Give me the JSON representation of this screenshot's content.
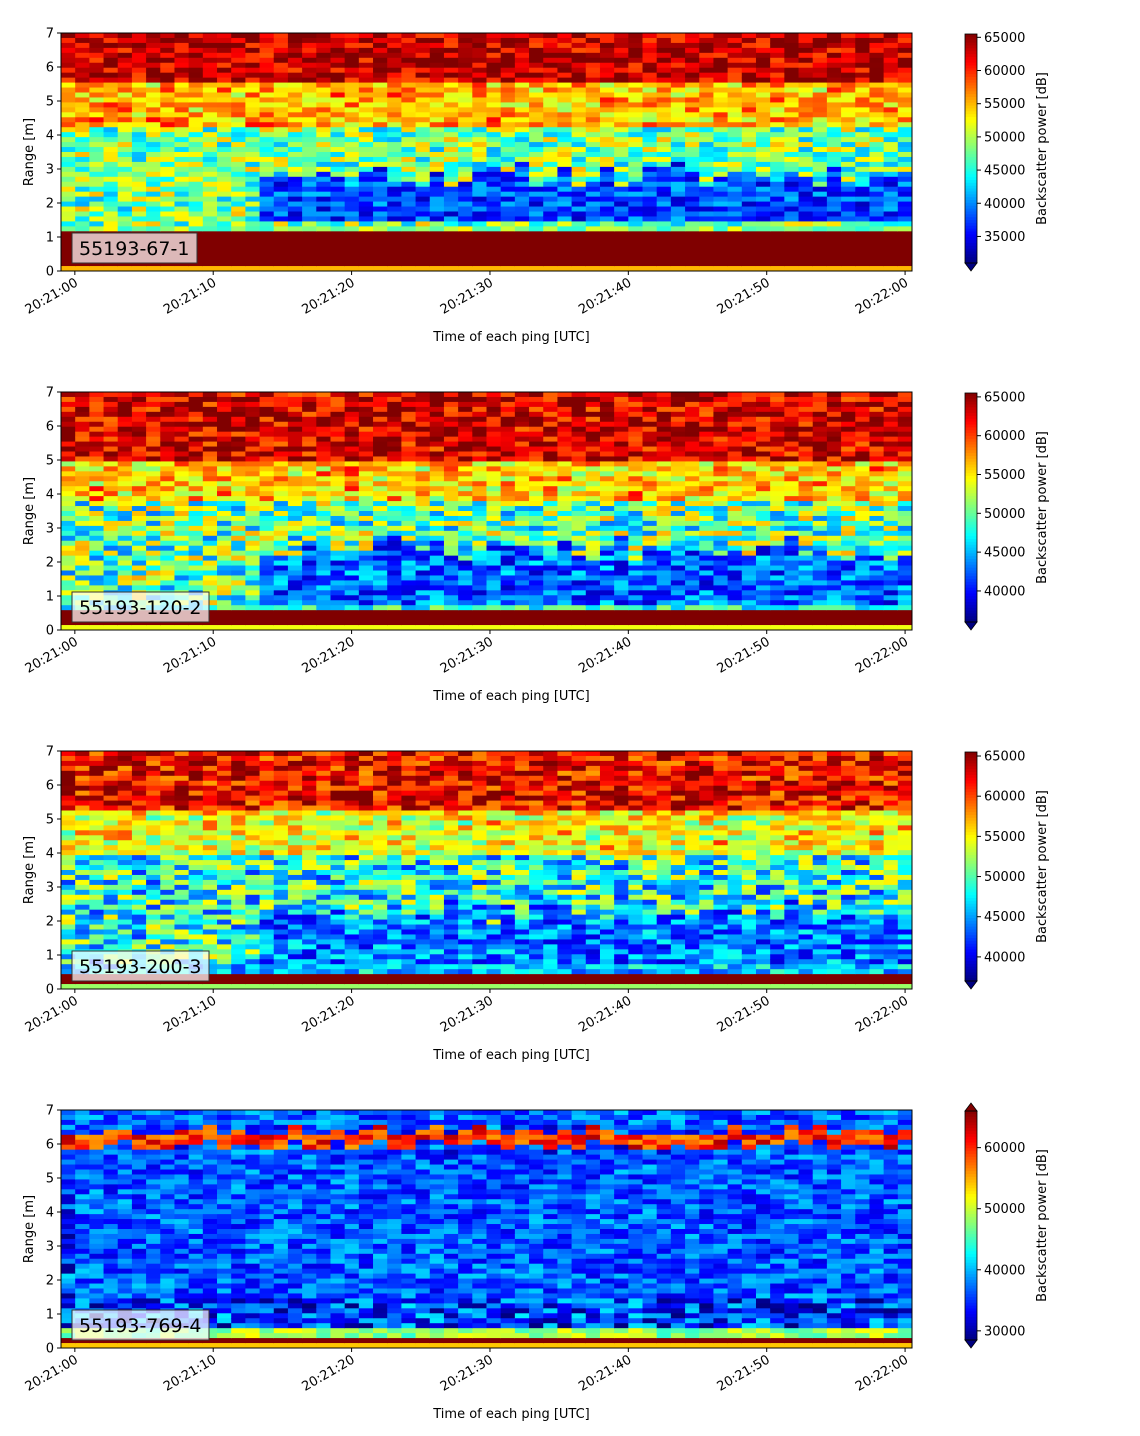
{
  "chart_data": [
    {
      "type": "heatmap",
      "label": "55193-67-1",
      "xlabel": "Time of each ping [UTC]",
      "ylabel": "Range [m]",
      "ylim": [
        0,
        7
      ],
      "yticks": [
        0,
        1,
        2,
        3,
        4,
        5,
        6,
        7
      ],
      "xticks": [
        "20:21:00",
        "20:21:10",
        "20:21:20",
        "20:21:30",
        "20:21:40",
        "20:21:50",
        "20:22:00"
      ],
      "xlim_seconds": [
        -1,
        60.5
      ],
      "colorbar": {
        "label": "Backscatter power [dB]",
        "min": 31000,
        "max": 65500,
        "ticks": [
          35000,
          40000,
          45000,
          50000,
          55000,
          60000,
          65000
        ],
        "extend": "min"
      },
      "profile": {
        "seed": 11,
        "base": 48000,
        "bottom_band": [
          0.2,
          1.1
        ],
        "bottom_value": 66000,
        "edge_value": 45000,
        "dark_layer": [
          1.5,
          2.8
        ],
        "dark_value": 33000,
        "dark_start": 13,
        "top_value": 62000,
        "top_from": 5.5
      }
    },
    {
      "type": "heatmap",
      "label": "55193-120-2",
      "xlabel": "Time of each ping [UTC]",
      "ylabel": "Range [m]",
      "ylim": [
        0,
        7
      ],
      "yticks": [
        0,
        1,
        2,
        3,
        4,
        5,
        6,
        7
      ],
      "xticks": [
        "20:21:00",
        "20:21:10",
        "20:21:20",
        "20:21:30",
        "20:21:40",
        "20:21:50",
        "20:22:00"
      ],
      "xlim_seconds": [
        -1,
        60.5
      ],
      "colorbar": {
        "label": "Backscatter power [dB]",
        "min": 36000,
        "max": 65500,
        "ticks": [
          40000,
          45000,
          50000,
          55000,
          60000,
          65000
        ],
        "extend": "min"
      },
      "profile": {
        "seed": 23,
        "base": 50000,
        "bottom_band": [
          0.1,
          0.55
        ],
        "bottom_value": 66000,
        "edge_value": 44000,
        "dark_layer": [
          0.8,
          2.4
        ],
        "dark_value": 38000,
        "dark_start": 13,
        "top_value": 62000,
        "top_from": 5.0
      }
    },
    {
      "type": "heatmap",
      "label": "55193-200-3",
      "xlabel": "Time of each ping [UTC]",
      "ylabel": "Range [m]",
      "ylim": [
        0,
        7
      ],
      "yticks": [
        0,
        1,
        2,
        3,
        4,
        5,
        6,
        7
      ],
      "xticks": [
        "20:21:00",
        "20:21:10",
        "20:21:20",
        "20:21:30",
        "20:21:40",
        "20:21:50",
        "20:22:00"
      ],
      "xlim_seconds": [
        -1,
        60.5
      ],
      "colorbar": {
        "label": "Backscatter power [dB]",
        "min": 37000,
        "max": 65500,
        "ticks": [
          40000,
          45000,
          50000,
          55000,
          60000,
          65000
        ],
        "extend": "min"
      },
      "profile": {
        "seed": 37,
        "base": 48500,
        "bottom_band": [
          0.1,
          0.45
        ],
        "bottom_value": 66000,
        "edge_value": 42000,
        "dark_layer": [
          0.7,
          2.3
        ],
        "dark_value": 39500,
        "dark_start": 13,
        "top_value": 61000,
        "top_from": 5.2
      }
    },
    {
      "type": "heatmap",
      "label": "55193-769-4",
      "xlabel": "Time of each ping [UTC]",
      "ylabel": "Range [m]",
      "ylim": [
        0,
        7
      ],
      "yticks": [
        0,
        1,
        2,
        3,
        4,
        5,
        6,
        7
      ],
      "xticks": [
        "20:21:00",
        "20:21:10",
        "20:21:20",
        "20:21:30",
        "20:21:40",
        "20:21:50",
        "20:22:00"
      ],
      "xlim_seconds": [
        -1,
        60.5
      ],
      "colorbar": {
        "label": "Backscatter power [dB]",
        "min": 28500,
        "max": 66000,
        "ticks": [
          30000,
          40000,
          50000,
          60000
        ],
        "extend": "both"
      },
      "profile": {
        "seed": 53,
        "base": 35000,
        "bottom_band": [
          0.15,
          0.35
        ],
        "bottom_value": 66000,
        "edge_value": 44000,
        "dark_layer": [
          1.5,
          5.8
        ],
        "dark_value": 32000,
        "dark_start": 0,
        "top_value": 36000,
        "top_from": 6.6,
        "bright_line": [
          6.0,
          6.4
        ],
        "bright_value": 58000
      }
    }
  ]
}
